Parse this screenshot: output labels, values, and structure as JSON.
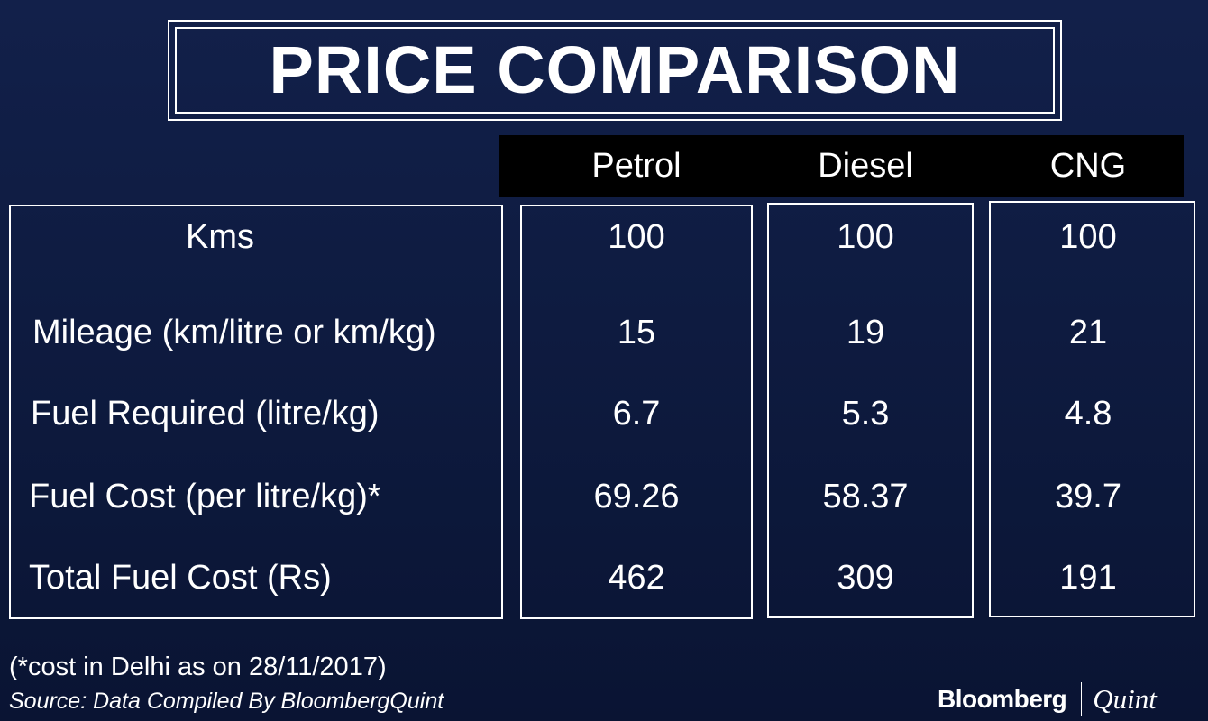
{
  "title": "PRICE COMPARISON",
  "footnote": "(*cost in Delhi as on 28/11/2017)",
  "source": "Source: Data Compiled By BloombergQuint",
  "logo": {
    "bloomberg": "Bloomberg",
    "quint": "Quint"
  },
  "colors": {
    "background": "#0e1b40",
    "header_bar": "#000000",
    "text": "#ffffff"
  },
  "chart_data": {
    "type": "table",
    "title": "PRICE COMPARISON",
    "columns": [
      "Petrol",
      "Diesel",
      "CNG"
    ],
    "rows": [
      {
        "label": "Kms",
        "values": [
          "100",
          "100",
          "100"
        ]
      },
      {
        "label": "Mileage (km/litre or km/kg)",
        "values": [
          "15",
          "19",
          "21"
        ]
      },
      {
        "label": "Fuel Required (litre/kg)",
        "values": [
          "6.7",
          "5.3",
          "4.8"
        ]
      },
      {
        "label": "Fuel Cost (per litre/kg)*",
        "values": [
          "69.26",
          "58.37",
          "39.7"
        ]
      },
      {
        "label": "Total Fuel Cost (Rs)",
        "values": [
          "462",
          "309",
          "191"
        ]
      }
    ]
  }
}
